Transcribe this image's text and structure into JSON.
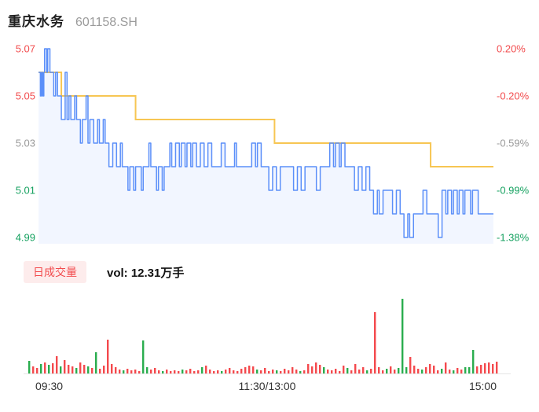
{
  "header": {
    "title": "重庆水务",
    "code": "601158.SH"
  },
  "axis": {
    "left": [
      {
        "label": "5.07",
        "tone": "up"
      },
      {
        "label": "5.05",
        "tone": "up"
      },
      {
        "label": "5.03",
        "tone": "flat"
      },
      {
        "label": "5.01",
        "tone": "down"
      },
      {
        "label": "4.99",
        "tone": "down"
      }
    ],
    "right": [
      {
        "label": "0.20%",
        "tone": "up"
      },
      {
        "label": "-0.20%",
        "tone": "up"
      },
      {
        "label": "-0.59%",
        "tone": "flat"
      },
      {
        "label": "-0.99%",
        "tone": "down"
      },
      {
        "label": "-1.38%",
        "tone": "down"
      }
    ]
  },
  "volume_header": {
    "badge": "日成交量",
    "vol_label": "vol: 12.31万手"
  },
  "time_axis": [
    "09:30",
    "11:30/13:00",
    "15:00"
  ],
  "colors": {
    "up": "#f24c4e",
    "down": "#17a261",
    "flat": "#999999",
    "price_line": "#5b8ff9",
    "price_fill": "rgba(91,143,249,0.08)",
    "avg_line": "#f7c653",
    "vol_red": "#f4494d",
    "vol_green": "#2aad4e",
    "badge_bg": "#fdecec",
    "badge_text": "#f24c4e",
    "axis_line": "#e5e5e5"
  },
  "chart_data": {
    "type": "line",
    "title": "重庆水务 601158.SH 分时",
    "prev_close": 5.06,
    "last_price": 5.0,
    "x_ticks": [
      "09:30",
      "11:30/13:00",
      "15:00"
    ],
    "x_range_trading_minutes": [
      0,
      239
    ],
    "y_ticks_price": [
      5.07,
      5.05,
      5.03,
      5.01,
      4.99
    ],
    "y_ticks_pct": [
      "0.20%",
      "-0.20%",
      "-0.59%",
      "-0.99%",
      "-1.38%"
    ],
    "grid": false,
    "series": [
      {
        "name": "price",
        "style": "step",
        "points": [
          [
            0,
            5.06
          ],
          [
            1,
            5.05
          ],
          [
            1.6,
            5.06
          ],
          [
            2.2,
            5.05
          ],
          [
            2.8,
            5.06
          ],
          [
            3.2,
            5.07
          ],
          [
            4.3,
            5.06
          ],
          [
            4.8,
            5.07
          ],
          [
            6,
            5.06
          ],
          [
            8,
            5.05
          ],
          [
            9,
            5.06
          ],
          [
            10,
            5.05
          ],
          [
            12,
            5.04
          ],
          [
            14,
            5.06
          ],
          [
            15,
            5.04
          ],
          [
            16,
            5.05
          ],
          [
            17,
            5.04
          ],
          [
            19,
            5.05
          ],
          [
            20,
            5.04
          ],
          [
            22,
            5.03
          ],
          [
            23,
            5.04
          ],
          [
            25,
            5.05
          ],
          [
            26,
            5.03
          ],
          [
            27,
            5.04
          ],
          [
            29,
            5.03
          ],
          [
            31,
            5.04
          ],
          [
            32,
            5.03
          ],
          [
            34,
            5.04
          ],
          [
            35,
            5.03
          ],
          [
            37,
            5.02
          ],
          [
            39,
            5.03
          ],
          [
            41,
            5.02
          ],
          [
            43,
            5.03
          ],
          [
            44,
            5.02
          ],
          [
            47,
            5.01
          ],
          [
            48,
            5.02
          ],
          [
            50,
            5.01
          ],
          [
            51,
            5.02
          ],
          [
            54,
            5.01
          ],
          [
            55,
            5.02
          ],
          [
            58,
            5.03
          ],
          [
            59,
            5.02
          ],
          [
            62,
            5.01
          ],
          [
            63,
            5.02
          ],
          [
            65,
            5.01
          ],
          [
            66,
            5.02
          ],
          [
            69,
            5.03
          ],
          [
            70,
            5.02
          ],
          [
            72,
            5.03
          ],
          [
            74,
            5.02
          ],
          [
            75,
            5.03
          ],
          [
            77,
            5.02
          ],
          [
            78,
            5.03
          ],
          [
            80,
            5.02
          ],
          [
            81,
            5.03
          ],
          [
            83,
            5.02
          ],
          [
            85,
            5.03
          ],
          [
            87,
            5.02
          ],
          [
            89,
            5.03
          ],
          [
            91,
            5.02
          ],
          [
            96,
            5.03
          ],
          [
            98,
            5.02
          ],
          [
            103,
            5.03
          ],
          [
            104,
            5.02
          ],
          [
            112,
            5.03
          ],
          [
            114,
            5.02
          ],
          [
            115,
            5.03
          ],
          [
            117,
            5.02
          ],
          [
            121,
            5.01
          ],
          [
            123,
            5.02
          ],
          [
            125,
            5.01
          ],
          [
            127,
            5.02
          ],
          [
            134,
            5.01
          ],
          [
            136,
            5.02
          ],
          [
            138,
            5.01
          ],
          [
            140,
            5.02
          ],
          [
            146,
            5.01
          ],
          [
            148,
            5.02
          ],
          [
            153,
            5.03
          ],
          [
            155,
            5.02
          ],
          [
            156,
            5.03
          ],
          [
            158,
            5.02
          ],
          [
            159,
            5.03
          ],
          [
            161,
            5.02
          ],
          [
            166,
            5.01
          ],
          [
            168,
            5.02
          ],
          [
            170,
            5.01
          ],
          [
            172,
            5.02
          ],
          [
            174,
            5.01
          ],
          [
            176,
            5.0
          ],
          [
            178,
            5.01
          ],
          [
            179,
            5.0
          ],
          [
            181,
            5.01
          ],
          [
            186,
            5.0
          ],
          [
            188,
            5.01
          ],
          [
            190,
            5.0
          ],
          [
            192,
            4.99
          ],
          [
            194,
            5.0
          ],
          [
            195,
            4.99
          ],
          [
            197,
            5.0
          ],
          [
            202,
            5.01
          ],
          [
            204,
            5.0
          ],
          [
            210,
            4.99
          ],
          [
            212,
            5.01
          ],
          [
            214,
            5.0
          ],
          [
            215,
            5.01
          ],
          [
            217,
            5.0
          ],
          [
            218,
            5.01
          ],
          [
            220,
            5.0
          ],
          [
            221,
            5.01
          ],
          [
            223,
            5.0
          ],
          [
            224,
            5.01
          ],
          [
            227,
            5.0
          ],
          [
            228,
            5.01
          ],
          [
            231,
            5.0
          ],
          [
            239,
            5.0
          ]
        ]
      },
      {
        "name": "average",
        "style": "step",
        "points": [
          [
            0,
            5.06
          ],
          [
            12,
            5.05
          ],
          [
            51,
            5.04
          ],
          [
            124,
            5.03
          ],
          [
            206,
            5.02
          ],
          [
            239,
            5.02
          ]
        ]
      }
    ],
    "volume": {
      "type": "bar",
      "unit": "relative-height",
      "up_down_colors": [
        "red",
        "green"
      ],
      "bars": [
        [
          16,
          "g"
        ],
        [
          9,
          "r"
        ],
        [
          7,
          "r"
        ],
        [
          12,
          "g"
        ],
        [
          14,
          "r"
        ],
        [
          11,
          "g"
        ],
        [
          13,
          "r"
        ],
        [
          22,
          "r"
        ],
        [
          9,
          "g"
        ],
        [
          17,
          "r"
        ],
        [
          11,
          "r"
        ],
        [
          9,
          "r"
        ],
        [
          7,
          "g"
        ],
        [
          14,
          "r"
        ],
        [
          11,
          "r"
        ],
        [
          9,
          "g"
        ],
        [
          7,
          "r"
        ],
        [
          27,
          "g"
        ],
        [
          6,
          "r"
        ],
        [
          10,
          "r"
        ],
        [
          43,
          "r"
        ],
        [
          12,
          "r"
        ],
        [
          8,
          "r"
        ],
        [
          5,
          "r"
        ],
        [
          4,
          "g"
        ],
        [
          6,
          "r"
        ],
        [
          4,
          "r"
        ],
        [
          5,
          "r"
        ],
        [
          3,
          "r"
        ],
        [
          42,
          "g"
        ],
        [
          8,
          "g"
        ],
        [
          5,
          "r"
        ],
        [
          7,
          "r"
        ],
        [
          4,
          "r"
        ],
        [
          3,
          "g"
        ],
        [
          5,
          "r"
        ],
        [
          3,
          "r"
        ],
        [
          4,
          "r"
        ],
        [
          3,
          "r"
        ],
        [
          5,
          "g"
        ],
        [
          4,
          "r"
        ],
        [
          6,
          "r"
        ],
        [
          3,
          "r"
        ],
        [
          4,
          "r"
        ],
        [
          8,
          "g"
        ],
        [
          10,
          "r"
        ],
        [
          5,
          "r"
        ],
        [
          3,
          "r"
        ],
        [
          4,
          "r"
        ],
        [
          3,
          "g"
        ],
        [
          5,
          "r"
        ],
        [
          7,
          "r"
        ],
        [
          4,
          "r"
        ],
        [
          3,
          "r"
        ],
        [
          6,
          "r"
        ],
        [
          8,
          "r"
        ],
        [
          10,
          "r"
        ],
        [
          9,
          "r"
        ],
        [
          5,
          "g"
        ],
        [
          4,
          "r"
        ],
        [
          7,
          "r"
        ],
        [
          3,
          "r"
        ],
        [
          5,
          "r"
        ],
        [
          4,
          "g"
        ],
        [
          3,
          "r"
        ],
        [
          6,
          "r"
        ],
        [
          4,
          "r"
        ],
        [
          8,
          "r"
        ],
        [
          5,
          "r"
        ],
        [
          3,
          "g"
        ],
        [
          4,
          "r"
        ],
        [
          12,
          "r"
        ],
        [
          9,
          "r"
        ],
        [
          14,
          "r"
        ],
        [
          11,
          "r"
        ],
        [
          8,
          "g"
        ],
        [
          5,
          "r"
        ],
        [
          4,
          "r"
        ],
        [
          6,
          "r"
        ],
        [
          3,
          "r"
        ],
        [
          10,
          "r"
        ],
        [
          7,
          "g"
        ],
        [
          4,
          "r"
        ],
        [
          12,
          "r"
        ],
        [
          5,
          "r"
        ],
        [
          8,
          "r"
        ],
        [
          4,
          "g"
        ],
        [
          6,
          "r"
        ],
        [
          78,
          "r"
        ],
        [
          8,
          "r"
        ],
        [
          4,
          "r"
        ],
        [
          6,
          "g"
        ],
        [
          9,
          "r"
        ],
        [
          5,
          "r"
        ],
        [
          7,
          "g"
        ],
        [
          95,
          "g"
        ],
        [
          8,
          "g"
        ],
        [
          21,
          "r"
        ],
        [
          10,
          "r"
        ],
        [
          6,
          "r"
        ],
        [
          5,
          "g"
        ],
        [
          8,
          "r"
        ],
        [
          12,
          "r"
        ],
        [
          10,
          "r"
        ],
        [
          4,
          "r"
        ],
        [
          6,
          "g"
        ],
        [
          14,
          "r"
        ],
        [
          5,
          "r"
        ],
        [
          4,
          "g"
        ],
        [
          7,
          "r"
        ],
        [
          5,
          "r"
        ],
        [
          8,
          "g"
        ],
        [
          8,
          "g"
        ],
        [
          30,
          "g"
        ],
        [
          9,
          "r"
        ],
        [
          11,
          "r"
        ],
        [
          13,
          "r"
        ],
        [
          14,
          "r"
        ],
        [
          12,
          "r"
        ],
        [
          15,
          "r"
        ]
      ]
    }
  }
}
